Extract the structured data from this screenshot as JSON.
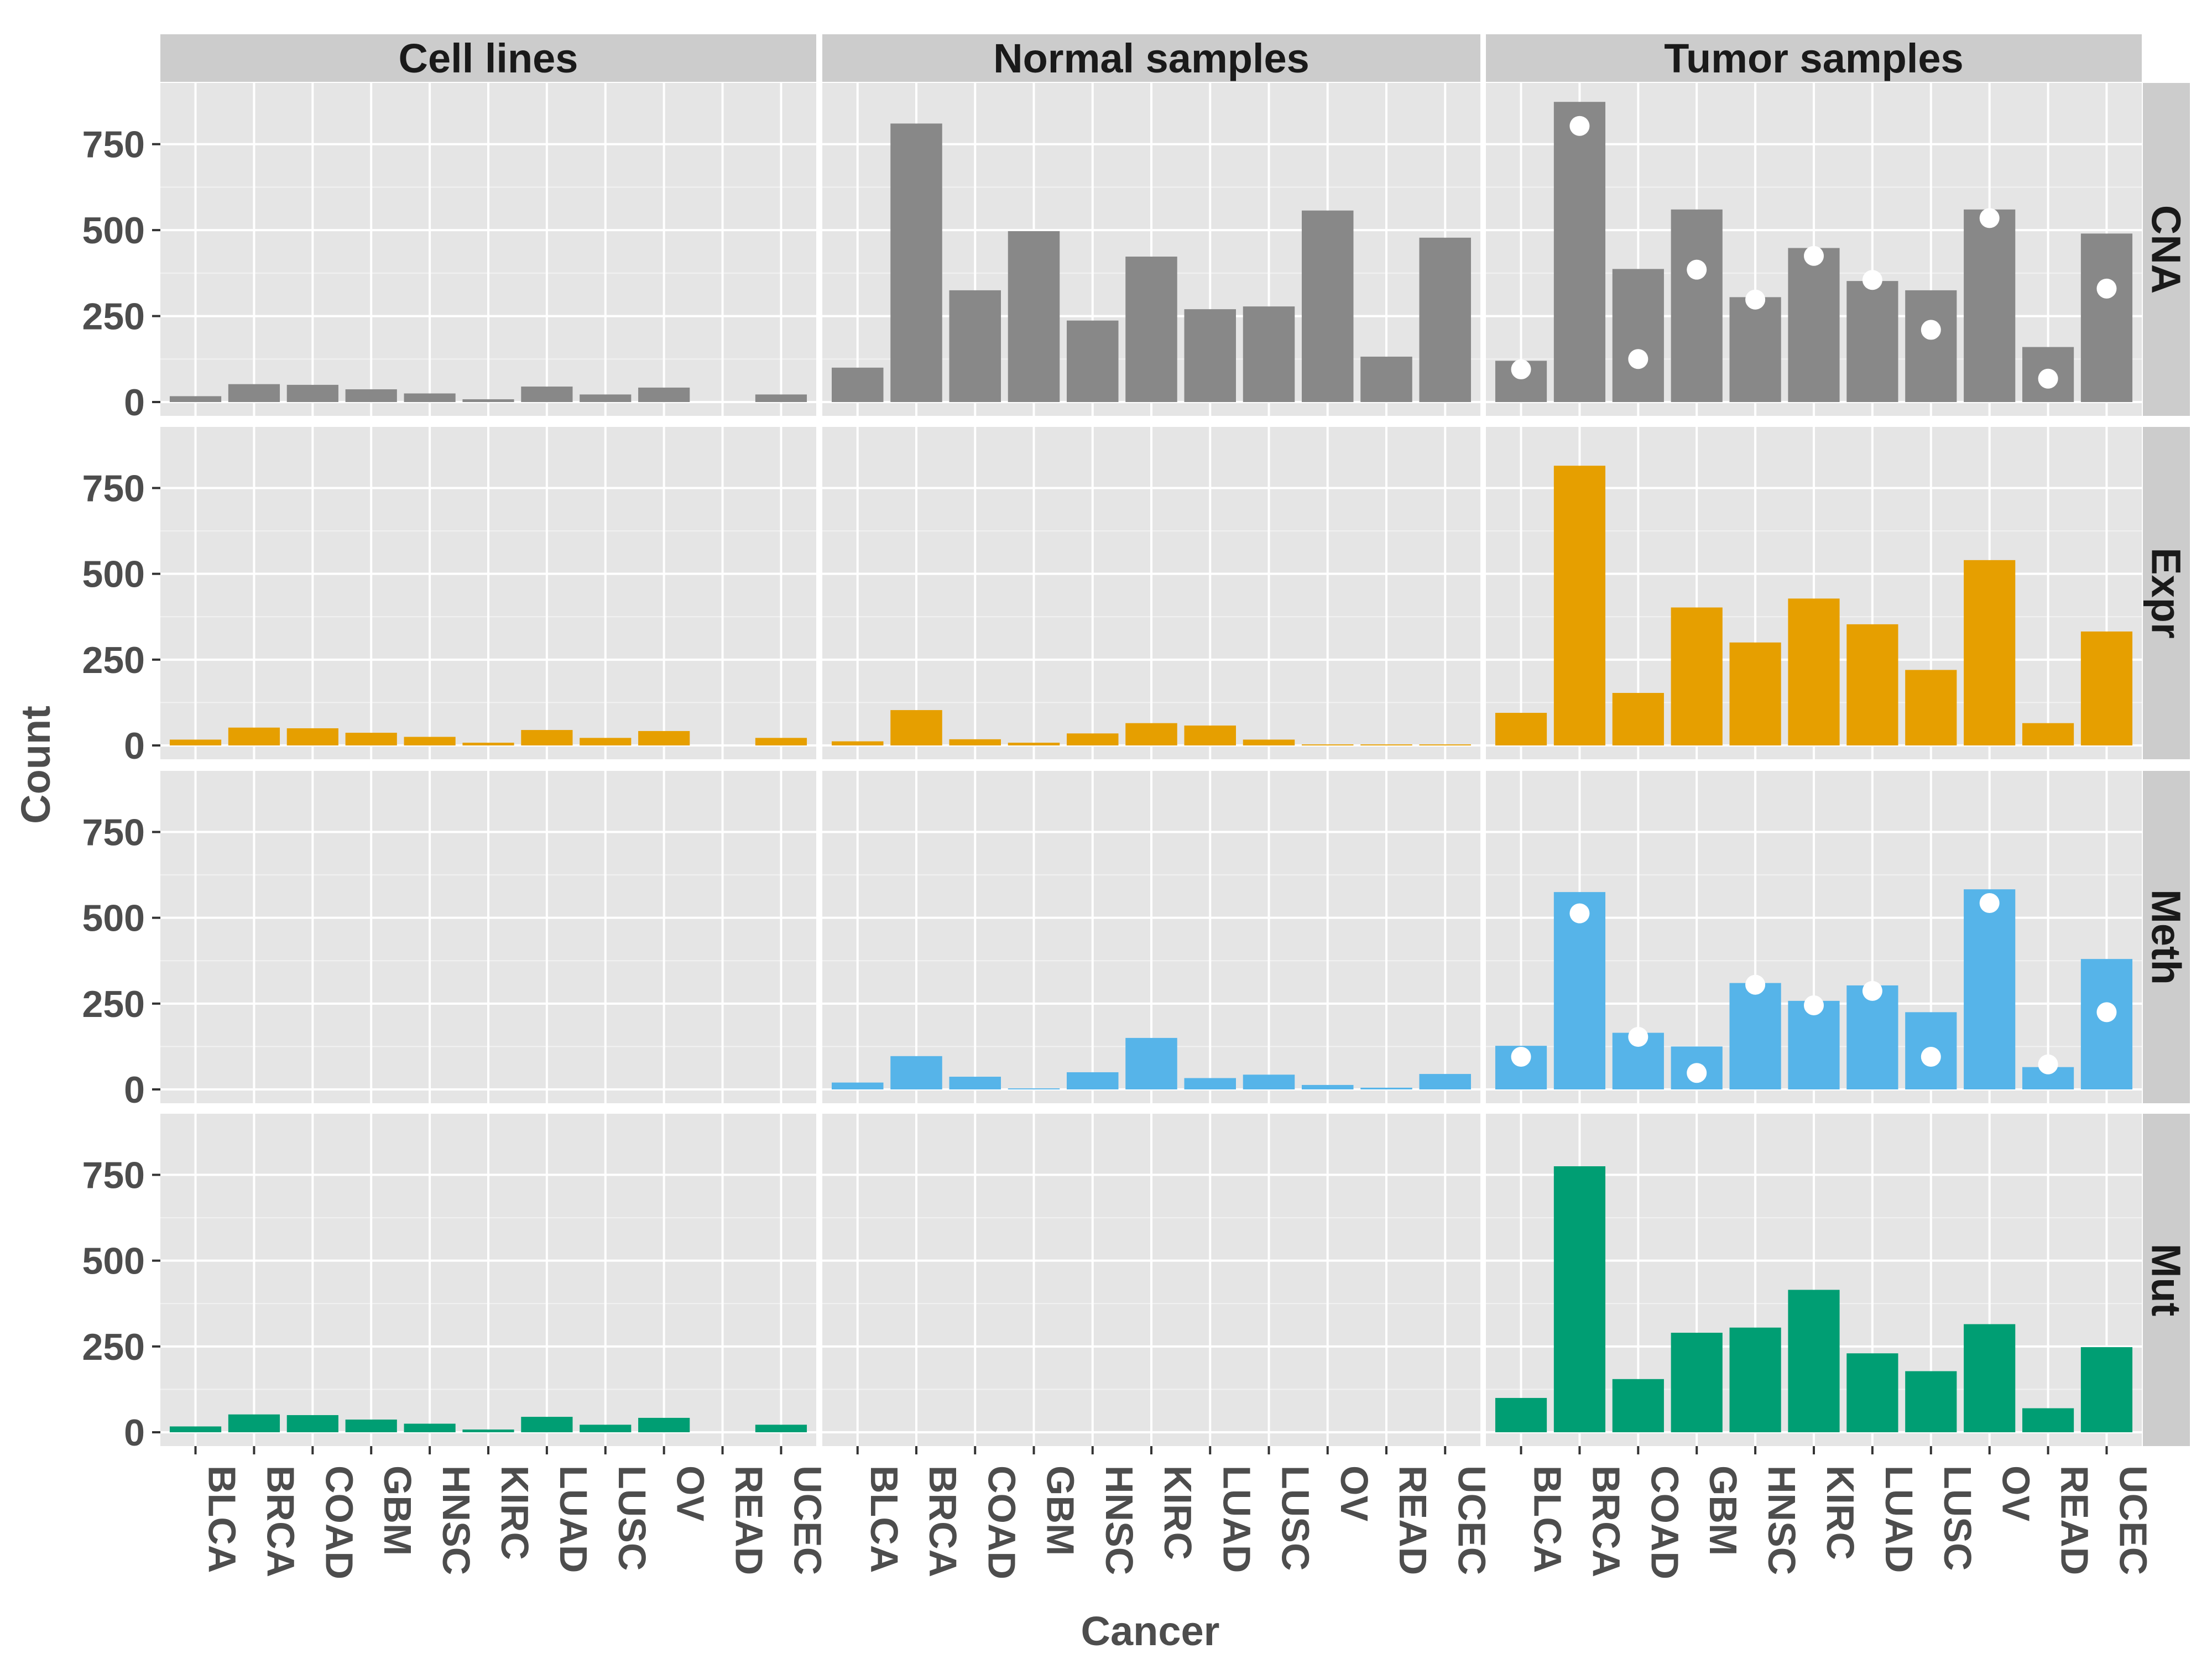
{
  "chart_data": {
    "type": "bar",
    "xlabel": "Cancer",
    "ylabel": "Count",
    "ylim": [
      0,
      920
    ],
    "yticks": [
      0,
      250,
      500,
      750
    ],
    "ytick_labels": [
      "0",
      "250",
      "500",
      "750"
    ],
    "grid": true,
    "categories": [
      "BLCA",
      "BRCA",
      "COAD",
      "GBM",
      "HNSC",
      "KIRC",
      "LUAD",
      "LUSC",
      "OV",
      "READ",
      "UCEC"
    ],
    "facet_columns": [
      "Cell lines",
      "Normal samples",
      "Tumor samples"
    ],
    "facet_rows": [
      "CNA",
      "Expr",
      "Meth",
      "Mut"
    ],
    "colors": {
      "CNA": "#888888",
      "Expr": "#E69F00",
      "Meth": "#56B4E9",
      "Mut": "#009E73",
      "points": "#ffffff",
      "panel_bg": "#e5e5e5",
      "strip_bg": "#cccccc",
      "grid": "#ffffff"
    },
    "panels": {
      "CNA": {
        "Cell lines": [
          17,
          52,
          50,
          37,
          25,
          8,
          45,
          22,
          42,
          0,
          22
        ],
        "Normal samples": [
          100,
          810,
          325,
          497,
          237,
          423,
          270,
          278,
          557,
          132,
          478
        ],
        "Tumor samples": [
          120,
          873,
          387,
          560,
          305,
          448,
          352,
          325,
          560,
          160,
          490
        ],
        "Tumor samples points": [
          95,
          803,
          125,
          385,
          298,
          425,
          355,
          210,
          535,
          68,
          330
        ]
      },
      "Expr": {
        "Cell lines": [
          17,
          52,
          50,
          37,
          25,
          8,
          45,
          22,
          42,
          0,
          22
        ],
        "Normal samples": [
          12,
          103,
          18,
          8,
          35,
          65,
          58,
          17,
          3,
          3,
          3
        ],
        "Tumor samples": [
          95,
          815,
          153,
          402,
          300,
          428,
          353,
          220,
          540,
          65,
          332
        ]
      },
      "Meth": {
        "Cell lines": [
          0,
          0,
          0,
          0,
          0,
          0,
          0,
          0,
          0,
          0,
          0
        ],
        "Normal samples": [
          20,
          97,
          37,
          3,
          50,
          150,
          33,
          43,
          13,
          5,
          45
        ],
        "Tumor samples": [
          127,
          575,
          165,
          125,
          310,
          258,
          303,
          225,
          583,
          65,
          380
        ],
        "Tumor samples points": [
          95,
          513,
          153,
          48,
          305,
          245,
          287,
          95,
          543,
          73,
          225
        ]
      },
      "Mut": {
        "Cell lines": [
          17,
          52,
          50,
          37,
          25,
          8,
          45,
          22,
          42,
          0,
          22
        ],
        "Normal samples": [
          0,
          0,
          0,
          0,
          0,
          0,
          0,
          0,
          0,
          0,
          0
        ],
        "Tumor samples": [
          100,
          775,
          155,
          290,
          305,
          415,
          230,
          178,
          315,
          70,
          248
        ]
      }
    }
  }
}
